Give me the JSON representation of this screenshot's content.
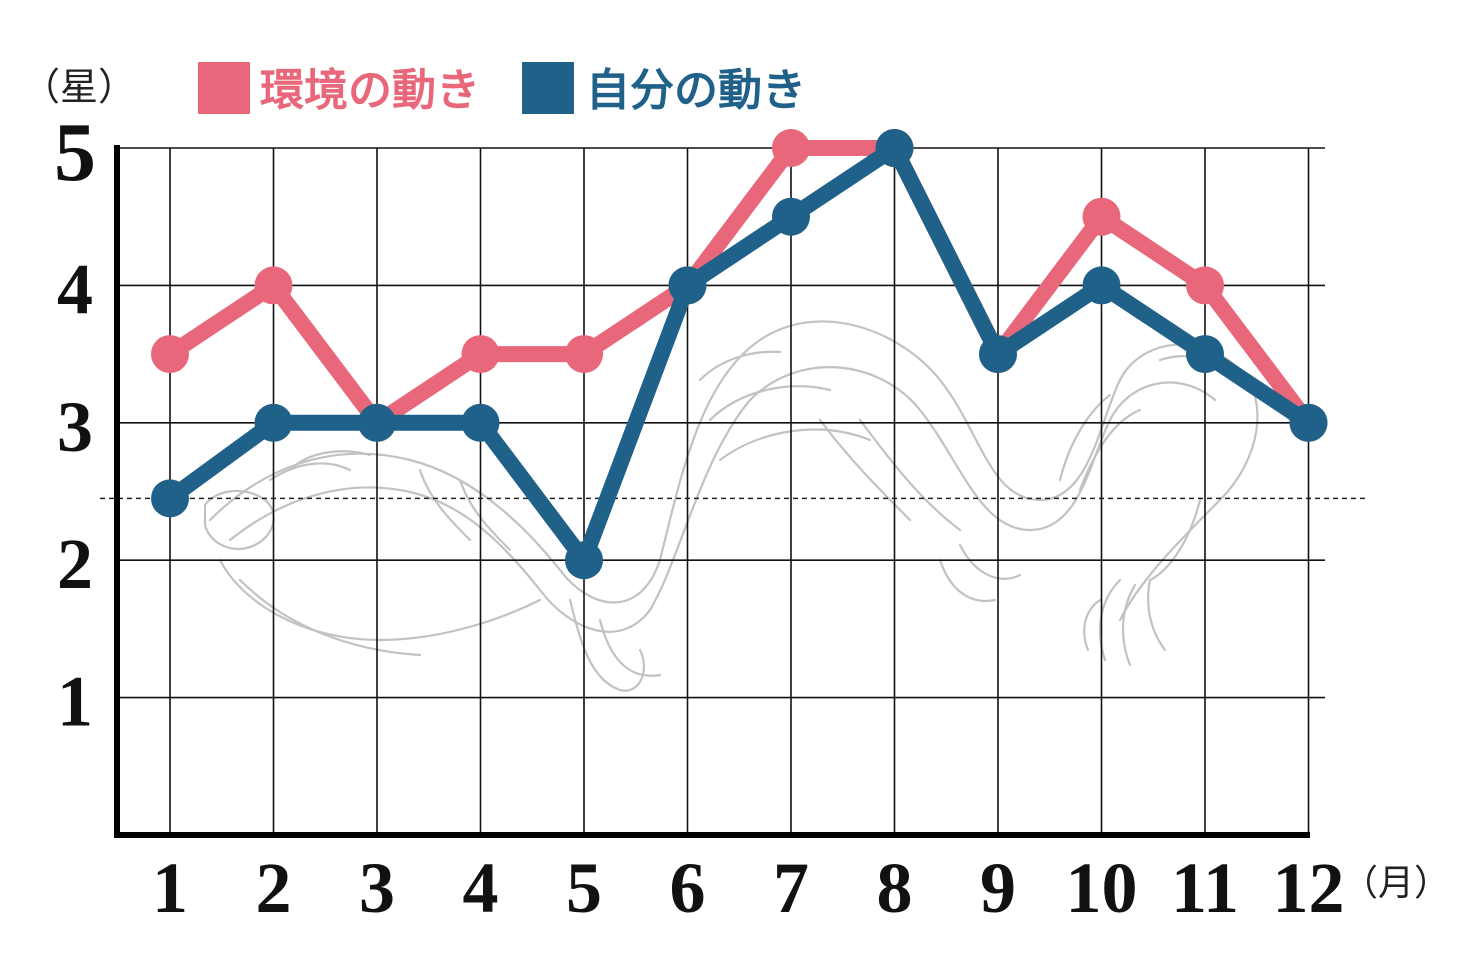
{
  "chart_data": {
    "type": "line",
    "y_unit_label": "（星）",
    "x_unit_label": "（月）",
    "categories": [
      "1",
      "2",
      "3",
      "4",
      "5",
      "6",
      "7",
      "8",
      "9",
      "10",
      "11",
      "12"
    ],
    "yticks": [
      "1",
      "2",
      "3",
      "4",
      "5"
    ],
    "ylim": [
      0,
      5
    ],
    "reference_line_y": 2.45,
    "grid": true,
    "legend_position": "top-left",
    "series": [
      {
        "name": "環境の動き",
        "color": "#e8677a",
        "values": [
          3.5,
          4,
          3,
          3.5,
          3.5,
          4,
          5,
          5,
          3.5,
          4.5,
          4,
          3
        ]
      },
      {
        "name": "自分の動き",
        "color": "#1f6189",
        "values": [
          2.45,
          3,
          3,
          3,
          2,
          4,
          4.5,
          5,
          3.5,
          4,
          3.5,
          3
        ]
      }
    ]
  }
}
